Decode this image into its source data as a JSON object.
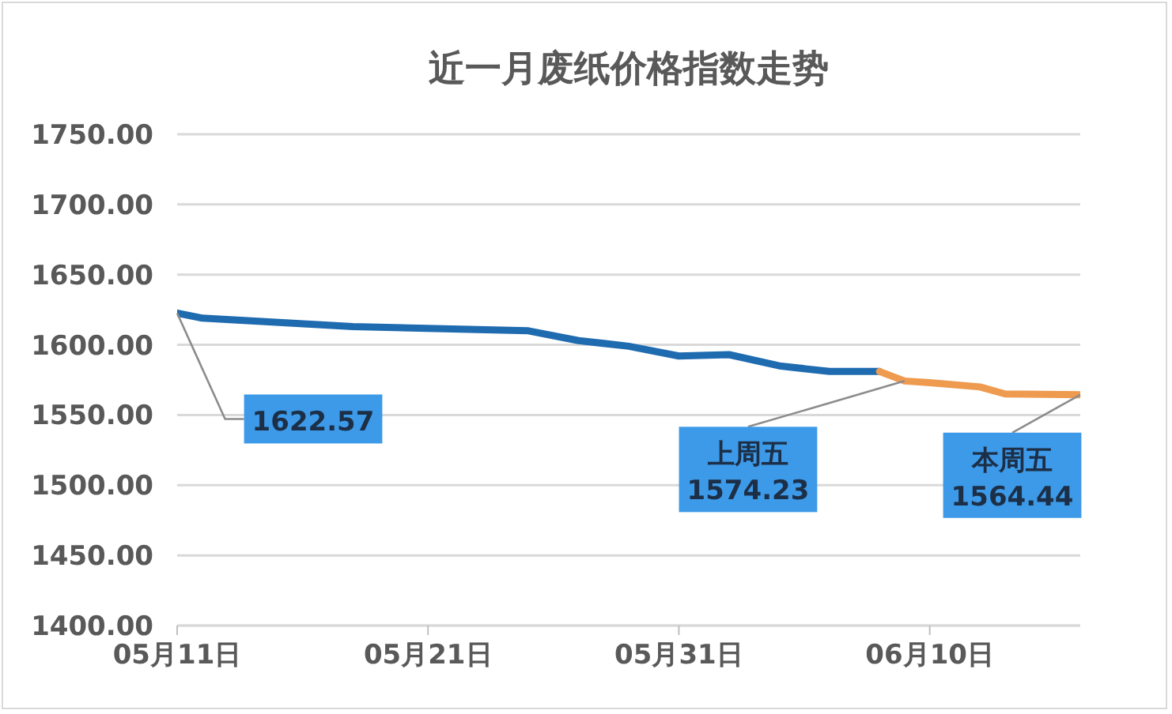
{
  "chart_data": {
    "type": "line",
    "title": "近一月废纸价格指数走势",
    "series": [
      {
        "color": "#1f6bb0",
        "x": [
          "--05-11",
          "--05-12",
          "--05-18",
          "--05-25",
          "--05-27",
          "--05-29",
          "--05-31",
          "--06-02",
          "--06-04",
          "--06-06",
          "--06-08"
        ],
        "values": [
          1622.57,
          1619,
          1613,
          1610,
          1603,
          1599,
          1592,
          1593,
          1585,
          1581,
          1581
        ]
      },
      {
        "color": "#ee9b50",
        "x": [
          "--06-08",
          "--06-09",
          "--06-10",
          "--06-12",
          "--06-13",
          "--06-16"
        ],
        "values": [
          1581,
          1574.23,
          1573,
          1570,
          1565,
          1564.44
        ]
      }
    ],
    "xlim": [
      "--05-11",
      "--06-16"
    ],
    "xticks": [
      {
        "value": "--05-11",
        "label": "05月11日"
      },
      {
        "value": "--05-21",
        "label": "05月21日"
      },
      {
        "value": "--05-31",
        "label": "05月31日"
      },
      {
        "value": "--06-10",
        "label": "06月10日"
      }
    ],
    "ylim": [
      1400,
      1750
    ],
    "yticks": [
      {
        "value": 1400,
        "label": "1400.00"
      },
      {
        "value": 1450,
        "label": "1450.00"
      },
      {
        "value": 1500,
        "label": "1500.00"
      },
      {
        "value": 1550,
        "label": "1550.00"
      },
      {
        "value": 1600,
        "label": "1600.00"
      },
      {
        "value": 1650,
        "label": "1650.00"
      },
      {
        "value": 1700,
        "label": "1700.00"
      },
      {
        "value": 1750,
        "label": "1750.00"
      }
    ],
    "grid": "y",
    "marker": "none",
    "line_style": "solid",
    "annotations": [
      {
        "text": "1622.57",
        "x": "--05-11",
        "y": 1622.57
      },
      {
        "text": "上周五\n1574.23",
        "x": "--06-09",
        "y": 1574.23
      },
      {
        "text": "本周五\n1564.44",
        "x": "--06-16",
        "y": 1564.44
      }
    ]
  }
}
